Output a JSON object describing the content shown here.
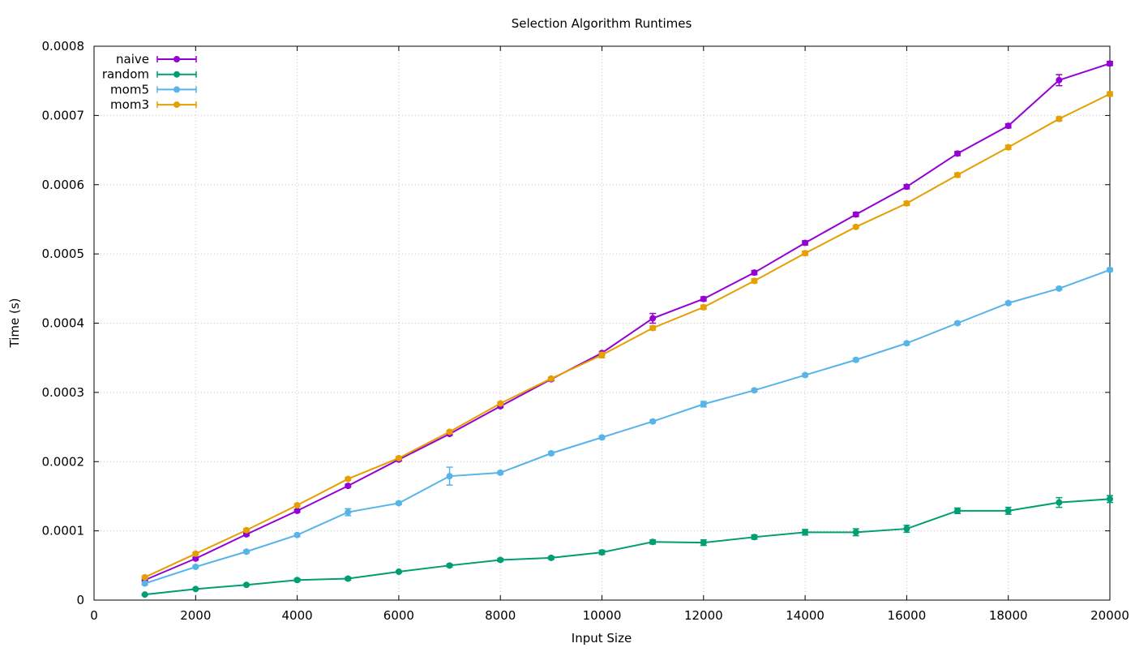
{
  "chart_data": {
    "type": "line",
    "title": "Selection Algorithm Runtimes",
    "xlabel": "Input Size",
    "ylabel": "Time (s)",
    "xlim": [
      0,
      20000
    ],
    "ylim": [
      0,
      0.0008
    ],
    "x_ticks": [
      0,
      2000,
      4000,
      6000,
      8000,
      10000,
      12000,
      14000,
      16000,
      18000,
      20000
    ],
    "x_tick_labels": [
      "0",
      "2000",
      "4000",
      "6000",
      "8000",
      "10000",
      "12000",
      "14000",
      "16000",
      "18000",
      "20000"
    ],
    "y_ticks": [
      0,
      0.0001,
      0.0002,
      0.0003,
      0.0004,
      0.0005,
      0.0006,
      0.0007,
      0.0008
    ],
    "y_tick_labels": [
      "0",
      "0.0001",
      "0.0002",
      "0.0003",
      "0.0004",
      "0.0005",
      "0.0006",
      "0.0007",
      "0.0008"
    ],
    "grid": true,
    "legend_position": "top-left",
    "x": [
      1000,
      2000,
      3000,
      4000,
      5000,
      6000,
      7000,
      8000,
      9000,
      10000,
      11000,
      12000,
      13000,
      14000,
      15000,
      16000,
      17000,
      18000,
      19000,
      20000
    ],
    "series": [
      {
        "name": "naive",
        "color": "#9400d3",
        "values": [
          2.9e-05,
          6e-05,
          9.5e-05,
          0.000129,
          0.000165,
          0.000203,
          0.00024,
          0.00028,
          0.000319,
          0.000357,
          0.000407,
          0.000435,
          0.000473,
          0.000516,
          0.000557,
          0.000597,
          0.000645,
          0.000685,
          0.000751,
          0.000775
        ],
        "errors": [
          2e-06,
          2e-06,
          2e-06,
          2e-06,
          2e-06,
          2e-06,
          2e-06,
          2e-06,
          2e-06,
          2e-06,
          7e-06,
          3e-06,
          3e-06,
          3e-06,
          3e-06,
          3e-06,
          3e-06,
          3e-06,
          8e-06,
          3e-06
        ]
      },
      {
        "name": "random",
        "color": "#009e73",
        "values": [
          8e-06,
          1.6e-05,
          2.2e-05,
          2.9e-05,
          3.1e-05,
          4.1e-05,
          5e-05,
          5.8e-05,
          6.1e-05,
          6.9e-05,
          8.4e-05,
          8.3e-05,
          9.1e-05,
          9.8e-05,
          9.8e-05,
          0.000103,
          0.000129,
          0.000129,
          0.000141,
          0.000146
        ],
        "errors": [
          1e-06,
          1e-06,
          1e-06,
          2e-06,
          2e-06,
          1e-06,
          2e-06,
          2e-06,
          2e-06,
          3e-06,
          3e-06,
          4e-06,
          3e-06,
          4e-06,
          5e-06,
          5e-06,
          4e-06,
          5e-06,
          7e-06,
          5e-06
        ]
      },
      {
        "name": "mom5",
        "color": "#56b4e9",
        "values": [
          2.4e-05,
          4.8e-05,
          7e-05,
          9.4e-05,
          0.000127,
          0.00014,
          0.000179,
          0.000184,
          0.000212,
          0.000235,
          0.000258,
          0.000283,
          0.000303,
          0.000325,
          0.000347,
          0.000371,
          0.0004,
          0.000429,
          0.00045,
          0.000477
        ],
        "errors": [
          2e-06,
          2e-06,
          2e-06,
          2e-06,
          5e-06,
          2e-06,
          1.3e-05,
          2e-06,
          2e-06,
          2e-06,
          2e-06,
          4e-06,
          2e-06,
          2e-06,
          2e-06,
          2e-06,
          2e-06,
          2e-06,
          2e-06,
          2e-06
        ]
      },
      {
        "name": "mom3",
        "color": "#e69f00",
        "values": [
          3.3e-05,
          6.7e-05,
          0.000101,
          0.000137,
          0.000175,
          0.000205,
          0.000243,
          0.000284,
          0.00032,
          0.000354,
          0.000393,
          0.000423,
          0.000461,
          0.000501,
          0.000539,
          0.000573,
          0.000614,
          0.000654,
          0.000695,
          0.000731
        ],
        "errors": [
          2e-06,
          2e-06,
          2e-06,
          2e-06,
          2e-06,
          2e-06,
          2e-06,
          2e-06,
          2e-06,
          4e-06,
          3e-06,
          3e-06,
          3e-06,
          3e-06,
          2e-06,
          3e-06,
          3e-06,
          3e-06,
          3e-06,
          3e-06
        ]
      }
    ]
  }
}
